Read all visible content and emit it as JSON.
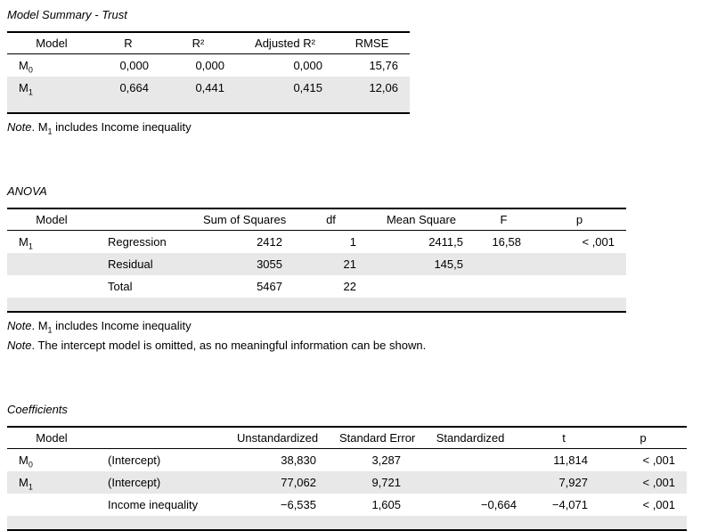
{
  "page": {
    "background": "#ffffff",
    "stripe_color": "#e8e8e8",
    "border_color": "#000000",
    "text_color": "#000000"
  },
  "tables": [
    {
      "title": "Model Summary - Trust",
      "headers": [
        {
          "label": "Model",
          "align": "center",
          "cell_align": "model"
        },
        {
          "label": "R",
          "align": "center",
          "cell_align": "right"
        },
        {
          "label": "R²",
          "align": "center",
          "cell_align": "right"
        },
        {
          "label": "Adjusted R²",
          "align": "center",
          "cell_align": "right"
        },
        {
          "label": "RMSE",
          "align": "center",
          "cell_align": "right"
        }
      ],
      "rows": [
        {
          "shaded": false,
          "spacious": true,
          "cells": [
            {
              "base": "M",
              "sub": "0"
            },
            "0,000",
            "0,000",
            "0,000",
            "15,76"
          ]
        },
        {
          "shaded": true,
          "cells": [
            {
              "base": "M",
              "sub": "1"
            },
            "0,664",
            "0,441",
            "0,415",
            "12,06"
          ]
        }
      ],
      "notes": [
        [
          {
            "text": "Note",
            "italic": true
          },
          {
            "text": ". M"
          },
          {
            "text": "1",
            "sub": true
          },
          {
            "text": " includes Income inequality"
          }
        ]
      ]
    },
    {
      "title": "ANOVA",
      "headers": [
        {
          "label": "Model",
          "align": "center",
          "cell_align": "model"
        },
        {
          "label": "",
          "align": "center",
          "cell_align": "left"
        },
        {
          "label": "Sum of Squares",
          "align": "center",
          "cell_align": "right"
        },
        {
          "label": "df",
          "align": "center",
          "cell_align": "right"
        },
        {
          "label": "Mean Square",
          "align": "center",
          "cell_align": "right"
        },
        {
          "label": "F",
          "align": "center",
          "cell_align": "right"
        },
        {
          "label": "p",
          "align": "center",
          "cell_align": "right"
        }
      ],
      "rows": [
        {
          "shaded": false,
          "spacious": true,
          "cells": [
            {
              "base": "M",
              "sub": "1"
            },
            "Regression",
            "2412",
            "1",
            "2411,5",
            "16,58",
            "< ,001"
          ]
        },
        {
          "shaded": true,
          "cells": [
            "",
            "Residual",
            "3055",
            "21",
            "145,5",
            "",
            ""
          ]
        },
        {
          "shaded": false,
          "cells": [
            "",
            "Total",
            "5467",
            "22",
            "",
            "",
            ""
          ]
        }
      ],
      "notes": [
        [
          {
            "text": "Note",
            "italic": true
          },
          {
            "text": ". M"
          },
          {
            "text": "1",
            "sub": true
          },
          {
            "text": " includes Income inequality"
          }
        ],
        [
          {
            "text": "Note",
            "italic": true
          },
          {
            "text": ". The intercept model is omitted, as no meaningful information can be shown."
          }
        ]
      ]
    },
    {
      "title": "Coefficients",
      "headers": [
        {
          "label": "Model",
          "align": "center",
          "cell_align": "model"
        },
        {
          "label": "",
          "align": "center",
          "cell_align": "left"
        },
        {
          "label": "Unstandardized",
          "align": "center",
          "cell_align": "right"
        },
        {
          "label": "Standard Error",
          "align": "center",
          "cell_align": "right"
        },
        {
          "label": "Standardized",
          "align": "center",
          "cell_align": "right"
        },
        {
          "label": "t",
          "align": "center",
          "cell_align": "right"
        },
        {
          "label": "p",
          "align": "center",
          "cell_align": "right"
        }
      ],
      "rows": [
        {
          "shaded": false,
          "spacious": true,
          "cells": [
            {
              "base": "M",
              "sub": "0"
            },
            "(Intercept)",
            "38,830",
            "3,287",
            "",
            "11,814",
            "< ,001"
          ]
        },
        {
          "shaded": true,
          "tall": true,
          "cells": [
            {
              "base": "M",
              "sub": "1"
            },
            "(Intercept)",
            "77,062",
            "9,721",
            "",
            "7,927",
            "< ,001"
          ]
        },
        {
          "shaded": false,
          "cells": [
            "",
            "Income inequality",
            "−6,535",
            "1,605",
            "−0,664",
            "−4,071",
            "< ,001"
          ]
        }
      ],
      "notes": []
    }
  ]
}
